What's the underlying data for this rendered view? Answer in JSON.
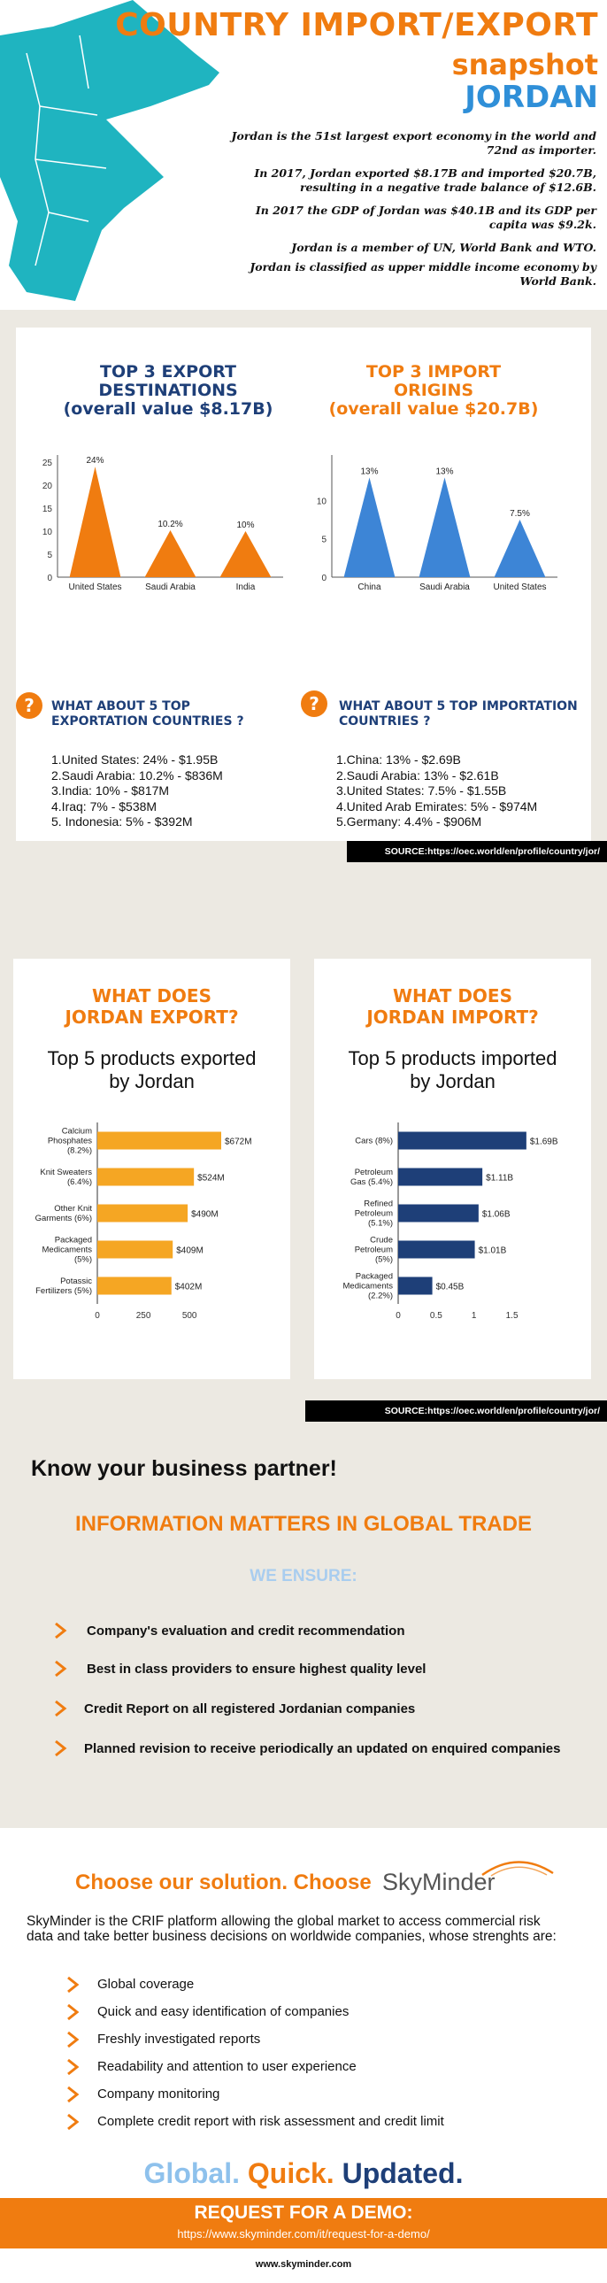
{
  "header": {
    "title_line1": "COUNTRY IMPORT/EXPORT",
    "title_line2": "snapshot",
    "title_line3": "JORDAN",
    "paragraphs": [
      "Jordan is the 51st largest export economy in the world and 72nd as importer.",
      "In 2017, Jordan exported $8.17B and imported $20.7B, resulting in a negative trade balance of $12.6B.",
      "In 2017 the GDP of Jordan was $40.1B and its GDP per capita was $9.2k.",
      "Jordan is a member of UN, World Bank and WTO.",
      "Jordan is classified as upper middle income economy by World Bank."
    ]
  },
  "export_dest": {
    "title_line1": "TOP 3 EXPORT",
    "title_line2": "DESTINATIONS",
    "title_line3": "(overall value $8.17B)",
    "question": "WHAT ABOUT 5 TOP EXPORTATION COUNTRIES ?",
    "list": [
      "1.United States: 24% - $1.95B",
      "2.Saudi Arabia: 10.2% - $836M",
      "3.India: 10% - $817M",
      "4.Iraq: 7% - $538M",
      "5. Indonesia: 5% - $392M"
    ]
  },
  "import_orig": {
    "title_line1": "TOP 3 IMPORT",
    "title_line2": "ORIGINS",
    "title_line3": "(overall value $20.7B)",
    "question": "WHAT ABOUT 5 TOP IMPORTATION COUNTRIES ?",
    "list": [
      "1.China: 13% - $2.69B",
      "2.Saudi Arabia: 13% - $2.61B",
      "3.United States: 7.5% - $1.55B",
      "4.United Arab Emirates: 5% - $974M",
      "5.Germany: 4.4% - $906M"
    ]
  },
  "source1": "SOURCE:https://oec.world/en/profile/country/jor/",
  "source2": "SOURCE:https://oec.world/en/profile/country/jor/",
  "export_card": {
    "title_line1": "WHAT DOES",
    "title_line2": "JORDAN EXPORT?",
    "chart_title_line1": "Top 5 products exported",
    "chart_title_line2": "by Jordan"
  },
  "import_card": {
    "title_line1": "WHAT DOES",
    "title_line2": "JORDAN IMPORT?",
    "chart_title_line1": "Top 5 products imported",
    "chart_title_line2": "by Jordan"
  },
  "chart_data": [
    {
      "type": "bar",
      "orientation": "vertical",
      "shape": "triangle",
      "categories": [
        "United States",
        "Saudi Arabia",
        "India"
      ],
      "values": [
        24,
        10.2,
        10
      ],
      "data_labels": [
        "24%",
        "10.2%",
        "10%"
      ],
      "ylim": [
        0,
        25
      ],
      "yticks": [
        "0",
        "5",
        "10",
        "15",
        "20",
        "25"
      ],
      "color": "#f07c10"
    },
    {
      "type": "bar",
      "orientation": "vertical",
      "shape": "triangle",
      "categories": [
        "China",
        "Saudi Arabia",
        "United States"
      ],
      "values": [
        13,
        13,
        7.5
      ],
      "data_labels": [
        "13%",
        "13%",
        "7.5%"
      ],
      "ylim": [
        0,
        15
      ],
      "yticks": [
        "0",
        "5",
        "10"
      ],
      "color": "#3d85d6"
    },
    {
      "type": "bar",
      "orientation": "horizontal",
      "categories": [
        [
          "Calcium",
          "Phosphates",
          "(8.2%)"
        ],
        [
          "Knit Sweaters",
          "(6.4%)"
        ],
        [
          "Other Knit",
          "Garments (6%)"
        ],
        [
          "Packaged",
          "Medicaments",
          "(5%)"
        ],
        [
          "Potassic",
          "Fertilizers (5%)"
        ]
      ],
      "values": [
        672,
        524,
        490,
        409,
        402
      ],
      "data_labels": [
        "$672M",
        "$524M",
        "$490M",
        "$409M",
        "$402M"
      ],
      "xlim": [
        0,
        720
      ],
      "xticks": [
        "0",
        "250",
        "500"
      ],
      "color": "#f5a623"
    },
    {
      "type": "bar",
      "orientation": "horizontal",
      "categories": [
        [
          "Cars (8%)"
        ],
        [
          "Petroleum",
          "Gas (5.4%)"
        ],
        [
          "Refined",
          "Petroleum",
          "(5.1%)"
        ],
        [
          "Crude",
          "Petroleum",
          "(5%)"
        ],
        [
          "Packaged",
          "Medicaments",
          "(2.2%)"
        ]
      ],
      "values": [
        1.69,
        1.11,
        1.06,
        1.01,
        0.45
      ],
      "data_labels": [
        "$1.69B",
        "$1.11B",
        "$1.06B",
        "$1.01B",
        "$0.45B"
      ],
      "xlim": [
        0,
        1.75
      ],
      "xticks": [
        "0",
        "0.5",
        "1",
        "1.5"
      ],
      "color": "#1e3f78"
    }
  ],
  "partner": {
    "heading": "Know your business partner!",
    "subheading": "INFORMATION MATTERS IN GLOBAL TRADE",
    "ensure": "WE ENSURE:",
    "items": [
      "Company's evaluation and credit recommendation",
      "Best in class providers to ensure highest quality level",
      "Credit Report on all registered Jordanian companies",
      "Planned revision to receive periodically an updated on enquired companies"
    ]
  },
  "solution": {
    "heading": "Choose our solution. Choose",
    "brand": "SkyMinder",
    "intro": "SkyMinder is the CRIF platform allowing the global market to access commercial risk data and take better business decisions on worldwide companies, whose strenghts are:",
    "items": [
      "Global coverage",
      "Quick and easy identification of companies",
      "Freshly investigated reports",
      "Readability and attention to user experience",
      "Company monitoring",
      "Complete credit report with risk assessment and credit limit"
    ],
    "tag1": "Global.",
    "tag2": "Quick.",
    "tag3": "Updated.",
    "demo_title": "REQUEST FOR A DEMO:",
    "demo_url": "https://www.skyminder.com/it/request-for-a-demo/",
    "footer_url": "www.skyminder.com"
  },
  "colors": {
    "orange": "#f07c10",
    "navy": "#1e3f78",
    "blue": "#3d85d6",
    "teal": "#1fb4c0",
    "beige": "#ece9e2"
  }
}
